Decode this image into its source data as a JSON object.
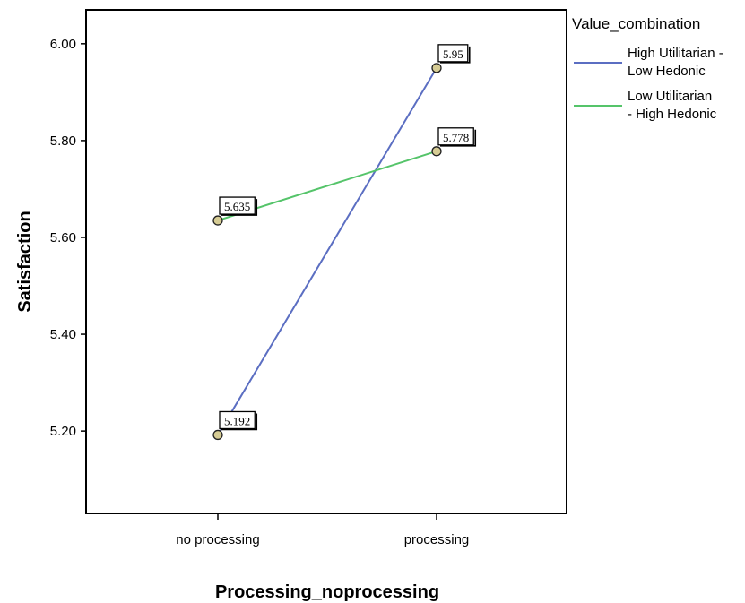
{
  "chart_data": {
    "type": "line",
    "title": "",
    "xlabel": "Processing_noprocessing",
    "ylabel": "Satisfaction",
    "categories": [
      "no processing",
      "processing"
    ],
    "ylim": [
      5.03,
      6.07
    ],
    "yticks": [
      5.2,
      5.4,
      5.6,
      5.8,
      6.0
    ],
    "ytick_labels": [
      "5.20",
      "5.40",
      "5.60",
      "5.80",
      "6.00"
    ],
    "grid": false,
    "legend": {
      "title": "Value_combination",
      "position": "right"
    },
    "series": [
      {
        "name": "High Utilitarian - Low Hedonic",
        "name_lines": [
          "High Utilitarian -",
          "Low Hedonic"
        ],
        "color": "#5b6ec2",
        "values": [
          5.192,
          5.95
        ],
        "labels": [
          "5.192",
          "5.95"
        ]
      },
      {
        "name": "Low Utilitarian - High Hedonic",
        "name_lines": [
          "Low Utilitarian",
          "- High Hedonic"
        ],
        "color": "#55c46a",
        "values": [
          5.635,
          5.778
        ],
        "labels": [
          "5.635",
          "5.778"
        ]
      }
    ],
    "marker_fill": "#d6cc94"
  }
}
